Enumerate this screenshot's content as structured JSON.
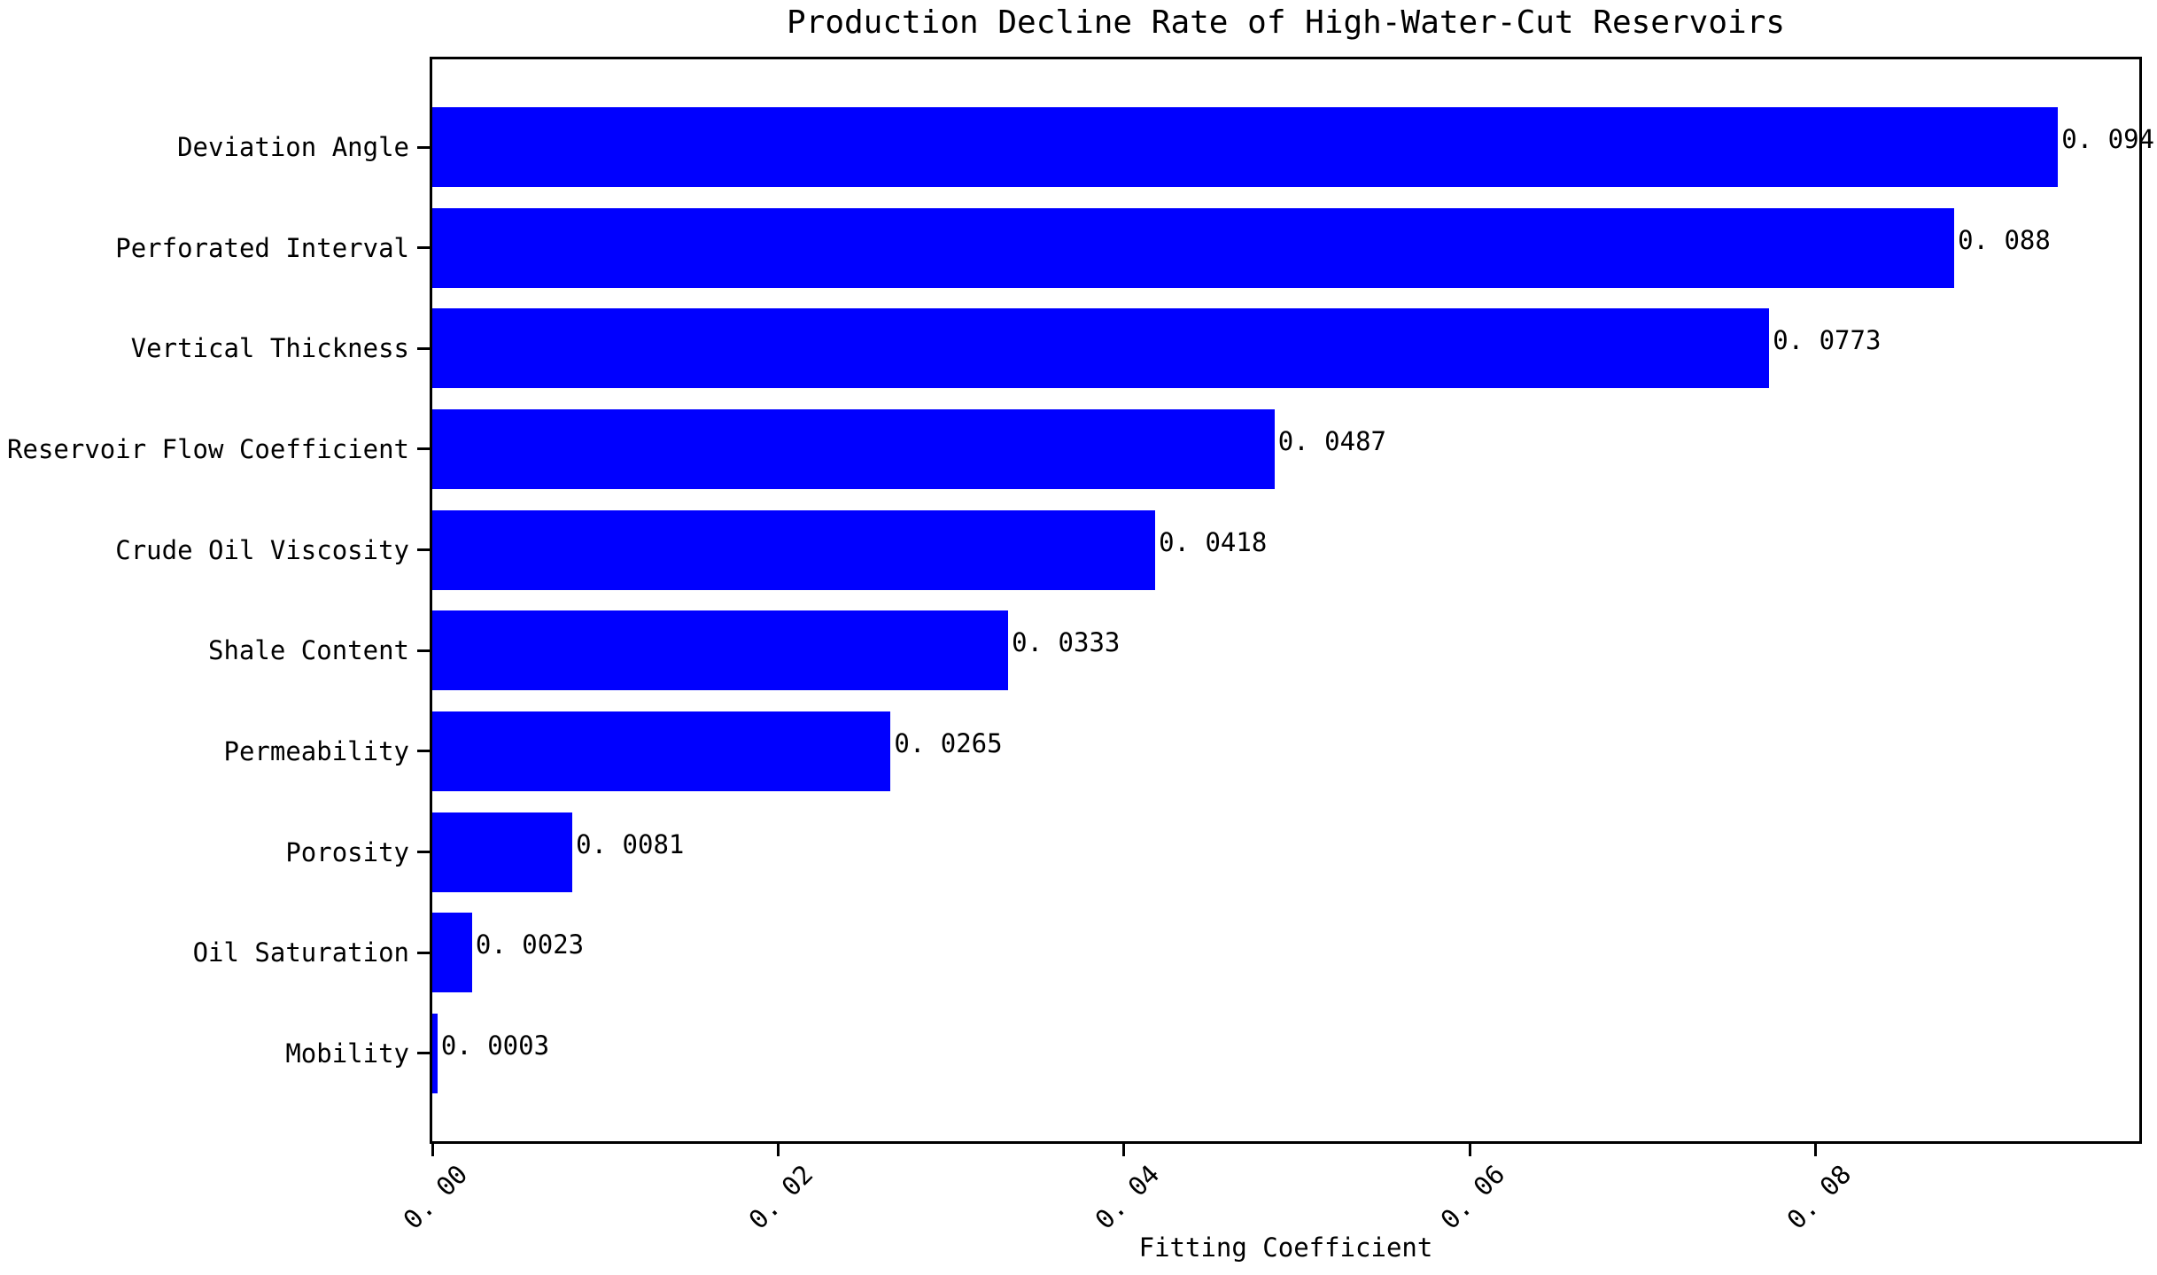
{
  "title": "Production Decline Rate of High-Water-Cut Reservoirs",
  "chart_data": {
    "type": "bar",
    "orientation": "horizontal",
    "title": "Production Decline Rate of High-Water-Cut Reservoirs",
    "xlabel": "Fitting Coefficient",
    "ylabel": "",
    "categories": [
      "Deviation Angle",
      "Perforated Interval",
      "Vertical Thickness",
      "Reservoir Flow Coefficient",
      "Crude Oil Viscosity",
      "Shale Content",
      "Permeability",
      "Porosity",
      "Oil Saturation",
      "Mobility"
    ],
    "values": [
      0.094,
      0.088,
      0.0773,
      0.0487,
      0.0418,
      0.0333,
      0.0265,
      0.0081,
      0.0023,
      0.0003
    ],
    "value_labels": [
      "0. 094",
      "0. 088",
      "0. 0773",
      "0. 0487",
      "0. 0418",
      "0. 0333",
      "0. 0265",
      "0. 0081",
      "0. 0023",
      "0. 0003"
    ],
    "x_tick_values": [
      0.0,
      0.02,
      0.04,
      0.06,
      0.08
    ],
    "x_tick_labels": [
      "0. 00",
      "0. 02",
      "0. 04",
      "0. 06",
      "0. 08"
    ],
    "xlim": [
      0,
      0.0987
    ],
    "sort_order": "descending",
    "bar_color": "#0000ff",
    "axis_color": "#000000",
    "background_color": "#ffffff",
    "grid": false,
    "legend": false
  }
}
